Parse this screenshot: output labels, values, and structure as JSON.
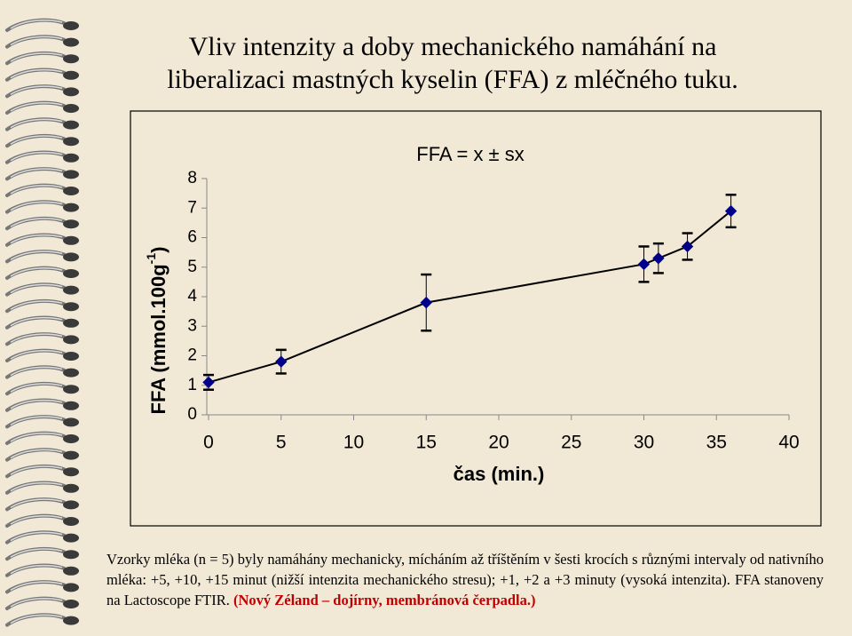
{
  "title": "Vliv intenzity a doby mechanického namáhání na liberalizaci mastných kyselin (FFA) z mléčného tuku.",
  "chart_data": {
    "type": "line",
    "subtitle": "FFA = x ± sx",
    "xlabel": "čas (min.)",
    "ylabel": {
      "text": "FFA (mmol.100g",
      "superscript": "-1",
      "end": ")"
    },
    "x": [
      0,
      5,
      15,
      30,
      31,
      33,
      36
    ],
    "series": [
      {
        "color": "#00008b",
        "values": [
          1.1,
          1.8,
          3.8,
          5.1,
          5.3,
          5.7,
          6.9
        ],
        "errors": [
          0.25,
          0.4,
          0.95,
          0.6,
          0.5,
          0.45,
          0.55
        ]
      }
    ],
    "xlim": [
      0,
      40
    ],
    "xticks": [
      0,
      5,
      10,
      15,
      20,
      25,
      30,
      35,
      40
    ],
    "ylim": [
      0,
      8
    ],
    "yticks": [
      0,
      1,
      2,
      3,
      4,
      5,
      6,
      7,
      8
    ],
    "grid": false
  },
  "caption": {
    "text": "Vzorky mléka (n = 5) byly namáhány mechanicky, mícháním až tříštěním v šesti krocích s různými intervaly od nativního mléka: +5, +10, +15 minut (nižší intenzita mechanického stresu); +1, +2 a +3 minuty (vysoká intenzita). FFA stanoveny na Lactoscope FTIR.",
    "highlight": "(Nový Zéland – dojírny, membránová čerpadla.)"
  }
}
